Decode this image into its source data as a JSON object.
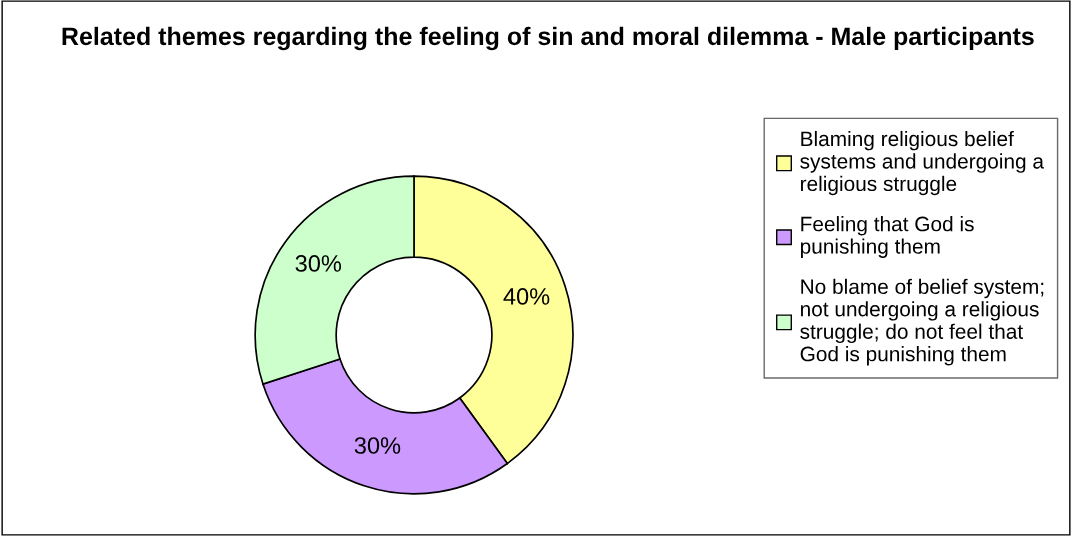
{
  "chart_data": {
    "type": "donut",
    "title": "Related themes regarding the feeling of sin and moral dilemma - Male participants",
    "categories": [
      "Blaming religious belief\nsystems and undergoing a\nreligious struggle",
      "Feeling that God is\npunishing them",
      "No blame of belief system;\nnot undergoing a religious\nstruggle; do not feel that\nGod is punishing them"
    ],
    "values": [
      40,
      30,
      30
    ],
    "colors": [
      "#ffff99",
      "#cc99ff",
      "#ccffcc"
    ],
    "value_labels": [
      "40%",
      "30%",
      "30%"
    ],
    "legend": "right"
  }
}
